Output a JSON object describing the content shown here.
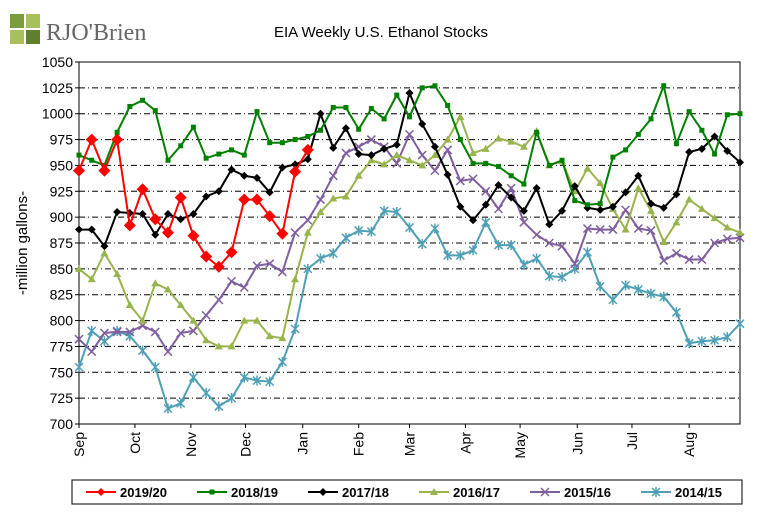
{
  "brand": {
    "name": "RJO'Brien"
  },
  "chart_data": {
    "type": "line",
    "title": "EIA Weekly U.S. Ethanol Stocks",
    "ylabel": "-million gallons-",
    "ylim": [
      700,
      1050
    ],
    "yticks": [
      700,
      725,
      750,
      775,
      800,
      825,
      850,
      875,
      900,
      925,
      950,
      975,
      1000,
      1025,
      1050
    ],
    "xlim": [
      0,
      52
    ],
    "months": [
      {
        "label": "Sep",
        "pos": 0
      },
      {
        "label": "Oct",
        "pos": 4.4
      },
      {
        "label": "Nov",
        "pos": 8.8
      },
      {
        "label": "Dec",
        "pos": 13.1
      },
      {
        "label": "Jan",
        "pos": 17.6
      },
      {
        "label": "Feb",
        "pos": 22.0
      },
      {
        "label": "Mar",
        "pos": 26.0
      },
      {
        "label": "Apr",
        "pos": 30.4
      },
      {
        "label": "May",
        "pos": 34.7
      },
      {
        "label": "Jun",
        "pos": 39.2
      },
      {
        "label": "Jul",
        "pos": 43.5
      },
      {
        "label": "Aug",
        "pos": 48.0
      }
    ],
    "grid": true,
    "legend": "bottom",
    "series": [
      {
        "name": "2019/20",
        "color": "#ff0000",
        "marker": "diamond",
        "x": [
          0,
          1,
          2,
          3,
          4,
          5,
          6,
          7,
          8,
          9,
          10,
          11,
          12,
          13,
          14,
          15,
          16,
          17,
          18
        ],
        "values": [
          945,
          975,
          945,
          975,
          892,
          927,
          898,
          885,
          919,
          882,
          862,
          852,
          866,
          917,
          917,
          901,
          884,
          944,
          965
        ]
      },
      {
        "name": "2018/19",
        "color": "#008000",
        "marker": "square",
        "x": [
          0,
          1,
          2,
          3,
          4,
          5,
          6,
          7,
          8,
          9,
          10,
          11,
          12,
          13,
          14,
          15,
          16,
          17,
          18,
          19,
          20,
          21,
          22,
          23,
          24,
          25,
          26,
          27,
          28,
          29,
          30,
          31,
          32,
          33,
          34,
          35,
          36,
          37,
          38,
          39,
          40,
          41,
          42,
          43,
          44,
          45,
          46,
          47,
          48,
          49,
          50,
          51,
          52
        ],
        "values": [
          960,
          955,
          950,
          982,
          1007,
          1013,
          1003,
          955,
          969,
          987,
          957,
          961,
          965,
          960,
          1002,
          972,
          972,
          975,
          978,
          984,
          1006,
          1006,
          985,
          1005,
          995,
          1018,
          997,
          1025,
          1027,
          1008,
          975,
          952,
          952,
          949,
          940,
          932,
          982,
          950,
          955,
          916,
          912,
          913,
          958,
          965,
          980,
          995,
          1027,
          971,
          1002,
          984,
          961,
          999,
          1000
        ]
      },
      {
        "name": "2017/18",
        "color": "#000000",
        "marker": "diamond",
        "x": [
          0,
          1,
          2,
          3,
          4,
          5,
          6,
          7,
          8,
          9,
          10,
          11,
          12,
          13,
          14,
          15,
          16,
          17,
          18,
          19,
          20,
          21,
          22,
          23,
          24,
          25,
          26,
          27,
          28,
          29,
          30,
          31,
          32,
          33,
          34,
          35,
          36,
          37,
          38,
          39,
          40,
          41,
          42,
          43,
          44,
          45,
          46,
          47,
          48,
          49,
          50,
          51,
          52
        ],
        "values": [
          888,
          888,
          872,
          905,
          904,
          903,
          883,
          903,
          898,
          903,
          920,
          925,
          946,
          940,
          938,
          924,
          948,
          951,
          956,
          1000,
          967,
          986,
          961,
          960,
          966,
          970,
          1020,
          990,
          968,
          941,
          910,
          897,
          912,
          931,
          919,
          906,
          928,
          893,
          906,
          930,
          909,
          907,
          910,
          924,
          940,
          913,
          909,
          922,
          963,
          966,
          978,
          964,
          953
        ]
      },
      {
        "name": "2016/17",
        "color": "#99b34d",
        "marker": "triangle",
        "x": [
          0,
          1,
          2,
          3,
          4,
          5,
          6,
          7,
          8,
          9,
          10,
          11,
          12,
          13,
          14,
          15,
          16,
          17,
          18,
          19,
          20,
          21,
          22,
          23,
          24,
          25,
          26,
          27,
          28,
          29,
          30,
          31,
          32,
          33,
          34,
          35,
          36,
          37,
          38,
          39,
          40,
          41,
          42,
          43,
          44,
          45,
          46,
          47,
          48,
          49,
          50,
          51,
          52
        ],
        "values": [
          850,
          840,
          865,
          845,
          815,
          800,
          836,
          830,
          815,
          800,
          781,
          775,
          775,
          800,
          800,
          785,
          783,
          840,
          885,
          905,
          918,
          920,
          940,
          955,
          951,
          960,
          955,
          950,
          960,
          975,
          997,
          962,
          966,
          976,
          973,
          968,
          983,
          950,
          954,
          925,
          947,
          933,
          908,
          888,
          928,
          906,
          876,
          895,
          917,
          908,
          899,
          890,
          885
        ]
      },
      {
        "name": "2015/16",
        "color": "#7f5f9f",
        "marker": "x",
        "x": [
          0,
          1,
          2,
          3,
          4,
          5,
          6,
          7,
          8,
          9,
          10,
          11,
          12,
          13,
          14,
          15,
          16,
          17,
          18,
          19,
          20,
          21,
          22,
          23,
          24,
          25,
          26,
          27,
          28,
          29,
          30,
          31,
          32,
          33,
          34,
          35,
          36,
          37,
          38,
          39,
          40,
          41,
          42,
          43,
          44,
          45,
          46,
          47,
          48,
          49,
          50,
          51,
          52
        ],
        "values": [
          782,
          770,
          788,
          789,
          789,
          795,
          789,
          770,
          788,
          790,
          805,
          820,
          838,
          832,
          853,
          855,
          847,
          885,
          897,
          917,
          940,
          962,
          968,
          975,
          968,
          952,
          980,
          960,
          945,
          965,
          935,
          937,
          925,
          908,
          928,
          895,
          883,
          875,
          872,
          855,
          889,
          888,
          888,
          907,
          889,
          887,
          858,
          865,
          859,
          859,
          875,
          879,
          880
        ]
      },
      {
        "name": "2014/15",
        "color": "#4fa0b6",
        "marker": "asterisk",
        "x": [
          0,
          1,
          2,
          3,
          4,
          5,
          6,
          7,
          8,
          9,
          10,
          11,
          12,
          13,
          14,
          15,
          16,
          17,
          18,
          19,
          20,
          21,
          22,
          23,
          24,
          25,
          26,
          27,
          28,
          29,
          30,
          31,
          32,
          33,
          34,
          35,
          36,
          37,
          38,
          39,
          40,
          41,
          42,
          43,
          44,
          45,
          46,
          47,
          48,
          49,
          50,
          51,
          52
        ],
        "values": [
          755,
          790,
          780,
          790,
          785,
          771,
          755,
          715,
          720,
          745,
          730,
          717,
          725,
          745,
          742,
          741,
          760,
          792,
          850,
          860,
          865,
          880,
          887,
          886,
          906,
          905,
          890,
          874,
          889,
          863,
          863,
          868,
          895,
          873,
          873,
          854,
          860,
          843,
          842,
          850,
          866,
          833,
          820,
          834,
          830,
          826,
          823,
          808,
          778,
          780,
          781,
          784,
          797
        ]
      }
    ]
  }
}
